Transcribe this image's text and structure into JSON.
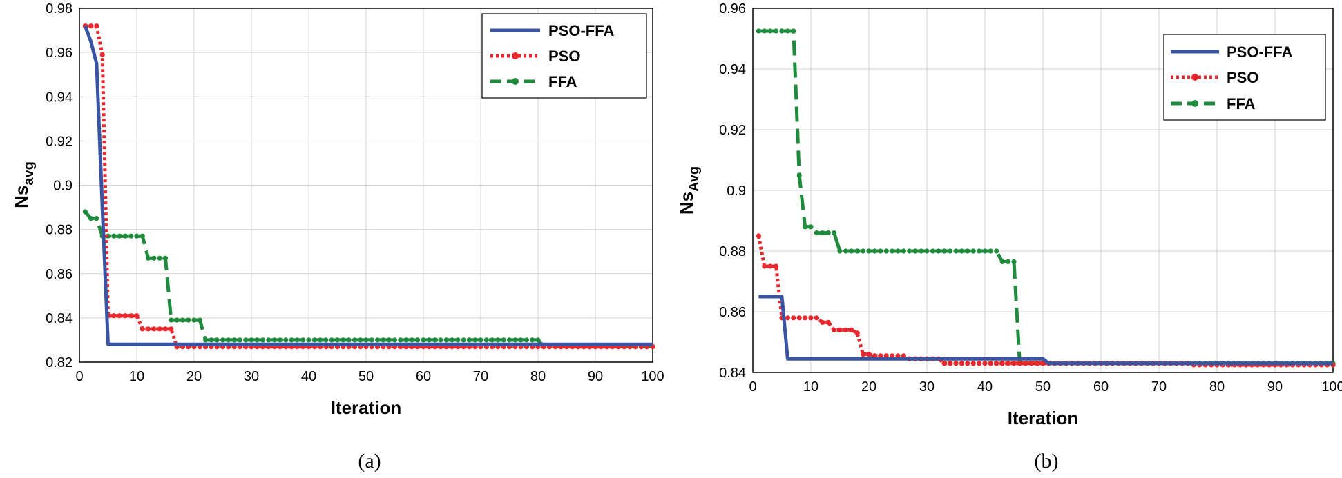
{
  "colors": {
    "PSO-FFA": "#3a54a4",
    "PSO": "#e8262b",
    "FFA": "#1f8a3c"
  },
  "chart_data": [
    {
      "type": "line",
      "panel_label": "(a)",
      "xlabel": "Iteration",
      "ylabel": "Ns",
      "ylabel_sub": "avg",
      "xlim": [
        0,
        100
      ],
      "ylim": [
        0.82,
        0.98
      ],
      "xticks": [
        0,
        10,
        20,
        30,
        40,
        50,
        60,
        70,
        80,
        90,
        100
      ],
      "yticks": [
        0.82,
        0.84,
        0.86,
        0.88,
        0.9,
        0.92,
        0.94,
        0.96,
        0.98
      ],
      "ytick_labels": [
        "0.82",
        "0.84",
        "0.86",
        "0.88",
        "0.9",
        "0.92",
        "0.94",
        "0.96",
        "0.98"
      ],
      "grid": true,
      "legend": "top-right",
      "legend_entries": [
        "PSO-FFA",
        "PSO",
        "FFA"
      ],
      "series": [
        {
          "name": "PSO-FFA",
          "style": "solid",
          "markers": false,
          "x": [
            1,
            2,
            3,
            4,
            5,
            6,
            100
          ],
          "y": [
            0.972,
            0.965,
            0.955,
            0.89,
            0.828,
            0.828,
            0.828
          ]
        },
        {
          "name": "PSO",
          "style": "dotted",
          "markers": true,
          "x": [
            1,
            2,
            3,
            4,
            5,
            6,
            7,
            8,
            9,
            10,
            11,
            12,
            13,
            14,
            15,
            16,
            17,
            18,
            19,
            20,
            21,
            22,
            100
          ],
          "y": [
            0.972,
            0.972,
            0.972,
            0.959,
            0.841,
            0.841,
            0.841,
            0.841,
            0.841,
            0.841,
            0.835,
            0.835,
            0.835,
            0.835,
            0.835,
            0.835,
            0.827,
            0.827,
            0.827,
            0.827,
            0.827,
            0.827,
            0.827
          ]
        },
        {
          "name": "FFA",
          "style": "dashed",
          "markers": true,
          "x": [
            1,
            2,
            3,
            4,
            5,
            6,
            7,
            8,
            9,
            10,
            11,
            12,
            13,
            14,
            15,
            16,
            17,
            18,
            19,
            20,
            21,
            22,
            80,
            81,
            100
          ],
          "y": [
            0.888,
            0.885,
            0.885,
            0.877,
            0.877,
            0.877,
            0.877,
            0.877,
            0.877,
            0.877,
            0.877,
            0.867,
            0.867,
            0.867,
            0.867,
            0.839,
            0.839,
            0.839,
            0.839,
            0.839,
            0.839,
            0.83,
            0.83,
            0.827,
            0.827
          ]
        }
      ]
    },
    {
      "type": "line",
      "panel_label": "(b)",
      "xlabel": "Iteration",
      "ylabel": "Ns",
      "ylabel_sub": "Avg",
      "xlim": [
        0,
        100
      ],
      "ylim": [
        0.84,
        0.96
      ],
      "xticks": [
        0,
        10,
        20,
        30,
        40,
        50,
        60,
        70,
        80,
        90,
        100
      ],
      "yticks": [
        0.84,
        0.86,
        0.88,
        0.9,
        0.92,
        0.94,
        0.96
      ],
      "ytick_labels": [
        "0.84",
        "0.86",
        "0.88",
        "0.9",
        "0.92",
        "0.94",
        "0.96"
      ],
      "grid": true,
      "legend": "top-right",
      "legend_entries": [
        "PSO-FFA",
        "PSO",
        "FFA"
      ],
      "series": [
        {
          "name": "PSO-FFA",
          "style": "solid",
          "markers": false,
          "x": [
            1,
            5,
            6,
            50,
            51,
            100
          ],
          "y": [
            0.865,
            0.865,
            0.8445,
            0.8445,
            0.843,
            0.843
          ]
        },
        {
          "name": "PSO",
          "style": "dotted",
          "markers": true,
          "x": [
            1,
            2,
            3,
            4,
            5,
            6,
            7,
            8,
            9,
            10,
            11,
            12,
            13,
            14,
            15,
            16,
            17,
            18,
            19,
            20,
            21,
            22,
            23,
            24,
            25,
            26,
            27,
            28,
            29,
            30,
            31,
            32,
            33,
            34,
            35,
            36,
            37,
            38,
            39,
            40,
            41,
            42,
            43,
            44,
            45,
            46,
            75,
            76,
            100
          ],
          "y": [
            0.885,
            0.875,
            0.875,
            0.875,
            0.858,
            0.858,
            0.858,
            0.858,
            0.858,
            0.858,
            0.858,
            0.8565,
            0.8565,
            0.854,
            0.854,
            0.854,
            0.854,
            0.853,
            0.846,
            0.846,
            0.8455,
            0.8455,
            0.8455,
            0.8455,
            0.8455,
            0.8455,
            0.8445,
            0.8445,
            0.8445,
            0.8445,
            0.8445,
            0.8445,
            0.843,
            0.843,
            0.843,
            0.843,
            0.843,
            0.843,
            0.843,
            0.843,
            0.843,
            0.843,
            0.843,
            0.843,
            0.843,
            0.843,
            0.843,
            0.8425,
            0.8425
          ]
        },
        {
          "name": "FFA",
          "style": "dashed",
          "markers": true,
          "x": [
            1,
            2,
            3,
            4,
            5,
            6,
            7,
            8,
            9,
            10,
            11,
            12,
            13,
            14,
            15,
            16,
            17,
            18,
            19,
            20,
            21,
            22,
            23,
            24,
            25,
            26,
            27,
            28,
            29,
            30,
            31,
            32,
            33,
            34,
            35,
            36,
            37,
            38,
            39,
            40,
            41,
            42,
            43,
            44,
            45,
            46,
            100
          ],
          "y": [
            0.9525,
            0.9525,
            0.9525,
            0.9525,
            0.9525,
            0.9525,
            0.9525,
            0.905,
            0.888,
            0.888,
            0.886,
            0.886,
            0.886,
            0.886,
            0.88,
            0.88,
            0.88,
            0.88,
            0.88,
            0.88,
            0.88,
            0.88,
            0.88,
            0.88,
            0.88,
            0.88,
            0.88,
            0.88,
            0.88,
            0.88,
            0.88,
            0.88,
            0.88,
            0.88,
            0.88,
            0.88,
            0.88,
            0.88,
            0.88,
            0.88,
            0.88,
            0.88,
            0.8765,
            0.8765,
            0.8765,
            0.843,
            0.843
          ]
        }
      ]
    }
  ]
}
